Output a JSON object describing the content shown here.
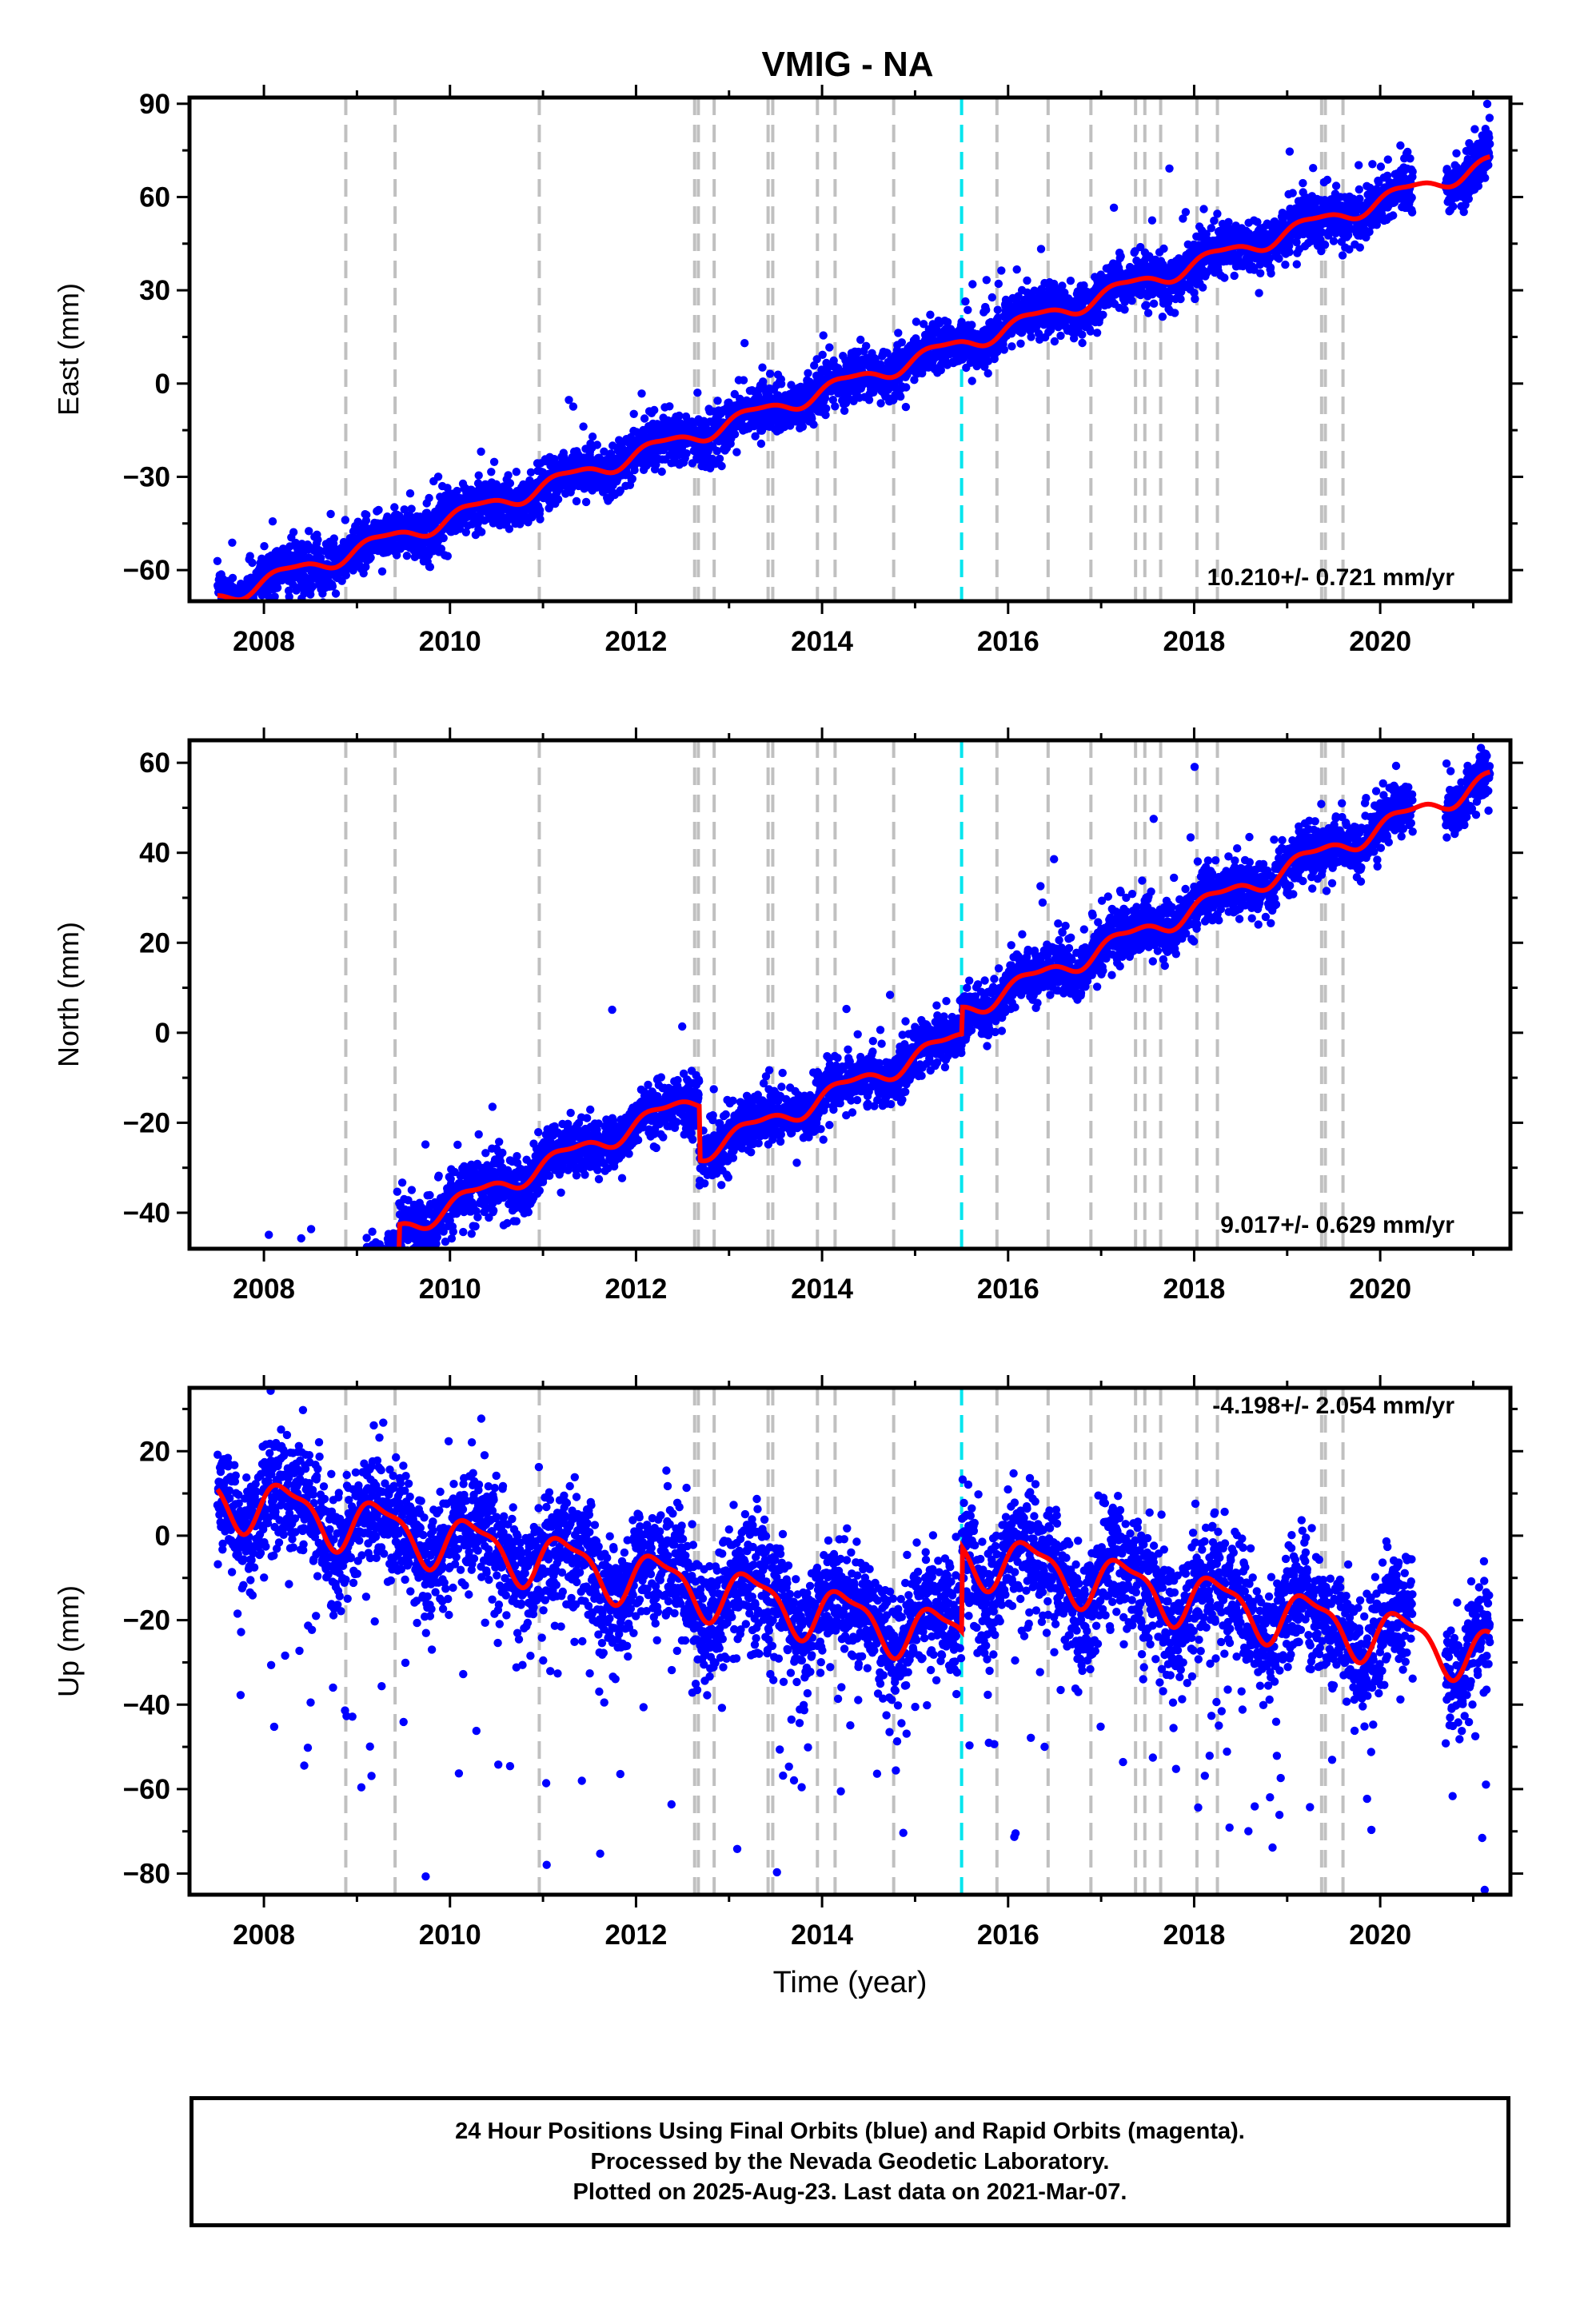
{
  "title": "VMIG - NA",
  "footer": {
    "line1": "24 Hour Positions Using Final Orbits (blue) and Rapid Orbits (magenta).",
    "line2": "Processed by the Nevada Geodetic Laboratory.",
    "line3": "Plotted on 2025-Aug-23. Last data on 2021-Mar-07."
  },
  "colors": {
    "final_orbit_points": "#0000ff",
    "model_fit": "#ff0000",
    "equipment_change_lines": "#c0c0c0",
    "earthquake_line": "#00e5ee",
    "frame": "#000000"
  },
  "chart_data": [
    {
      "type": "scatter",
      "component": "east",
      "ylabel": "East (mm)",
      "xlabel": "",
      "xlim": [
        2007.2,
        2021.4
      ],
      "ylim": [
        -70,
        92
      ],
      "yticks": [
        -60,
        -30,
        0,
        30,
        60,
        90
      ],
      "xticks": [
        2008,
        2010,
        2012,
        2014,
        2016,
        2018,
        2020
      ],
      "velocity_label": "10.210+/- 0.721 mm/yr",
      "velocity_label_position": "bottom-right",
      "trend": {
        "rate": 10.21,
        "intercept_2014": -2.5,
        "annual_amp": 2.5,
        "semiannual_amp": 0.8
      },
      "offsets": [],
      "scatter_sigma": 4.0,
      "outlier_fraction": 0.02,
      "outlier_sign": 1,
      "outlier_scale": 14
    },
    {
      "type": "scatter",
      "component": "north",
      "ylabel": "North (mm)",
      "xlabel": "",
      "xlim": [
        2007.2,
        2021.4
      ],
      "ylim": [
        -48,
        65
      ],
      "yticks": [
        -40,
        -20,
        0,
        20,
        40,
        60
      ],
      "xticks": [
        2008,
        2010,
        2012,
        2014,
        2016,
        2018,
        2020
      ],
      "velocity_label": "9.017+/- 0.629 mm/yr",
      "velocity_label_position": "bottom-right",
      "trend": {
        "rate": 9.017,
        "intercept_2014": -9.0,
        "annual_amp": 2.0,
        "semiannual_amp": 0.8
      },
      "offsets": [
        {
          "epoch": 2009.45,
          "size": 7
        },
        {
          "epoch": 2012.68,
          "size": -12
        },
        {
          "epoch": 2015.5,
          "size": 6
        }
      ],
      "scatter_sigma": 3.0,
      "outlier_fraction": 0.02,
      "outlier_sign": 1,
      "outlier_scale": 10
    },
    {
      "type": "scatter",
      "component": "up",
      "ylabel": "Up (mm)",
      "xlabel": "Time (year)",
      "xlim": [
        2007.2,
        2021.4
      ],
      "ylim": [
        -85,
        35
      ],
      "yticks": [
        -80,
        -60,
        -40,
        -20,
        0,
        20
      ],
      "xticks": [
        2008,
        2010,
        2012,
        2014,
        2016,
        2018,
        2020
      ],
      "velocity_label": "-4.198+/- 2.054 mm/yr",
      "velocity_label_position": "top-right",
      "trend": {
        "rate": -4.198,
        "intercept_2014": -8.0,
        "annual_amp": 6.0,
        "semiannual_amp": 2.0
      },
      "offsets": [
        {
          "epoch": 2015.5,
          "size": 20
        }
      ],
      "scatter_sigma": 7.0,
      "outlier_fraction": 0.05,
      "outlier_sign": -1,
      "outlier_scale": 30
    }
  ],
  "equipment_change_epochs": [
    2008.88,
    2009.41,
    2010.96,
    2012.63,
    2012.67,
    2012.84,
    2013.42,
    2013.47,
    2013.95,
    2014.14,
    2014.77,
    2015.88,
    2016.43,
    2016.89,
    2017.37,
    2017.47,
    2017.64,
    2018.03,
    2018.25,
    2019.37,
    2019.41,
    2019.6
  ],
  "earthquake_epochs": [
    2015.5
  ],
  "data_span": {
    "start": 2007.5,
    "end": 2021.18,
    "gap_start": 2020.35,
    "gap_end": 2020.7
  }
}
